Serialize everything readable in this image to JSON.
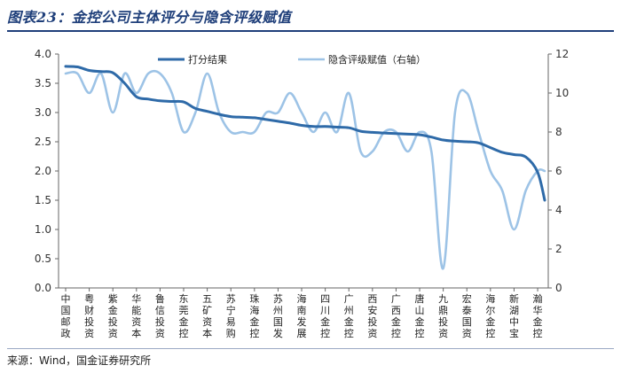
{
  "figure": {
    "title": "图表23：金控公司主体评分与隐含评级赋值",
    "source": "来源：Wind，国金证券研究所"
  },
  "chart_data": {
    "type": "line",
    "categories": [
      "中国邮政",
      "粤财投资",
      "紫金投资",
      "华能资本",
      "鲁信投资",
      "东莞金控",
      "五矿资本",
      "苏宁易购",
      "珠海金控",
      "苏州国发",
      "海南发展",
      "四川金控",
      "广州金控",
      "西安投资",
      "广西金控",
      "唐山金控",
      "九鼎投资",
      "宏泰国资",
      "海尔金控",
      "新湖中宝",
      "瀚华金控"
    ],
    "x": [
      0,
      0.5,
      1,
      1.5,
      2,
      2.5,
      3,
      3.5,
      4,
      4.5,
      5,
      5.5,
      6,
      6.5,
      7,
      7.5,
      8,
      8.5,
      9,
      9.5,
      10,
      10.5,
      11,
      11.5,
      12,
      12.5,
      13,
      13.5,
      14,
      14.5,
      15,
      15.5,
      16,
      16.5,
      17,
      17.5,
      18,
      18.5,
      19,
      19.5,
      20,
      20.3
    ],
    "series": [
      {
        "name": "打分结果",
        "axis": "left",
        "color": "#2e6aa8",
        "values": [
          3.79,
          3.78,
          3.72,
          3.7,
          3.68,
          3.5,
          3.27,
          3.23,
          3.2,
          3.19,
          3.18,
          3.07,
          3.02,
          2.97,
          2.93,
          2.92,
          2.91,
          2.88,
          2.85,
          2.82,
          2.78,
          2.76,
          2.76,
          2.75,
          2.74,
          2.68,
          2.66,
          2.65,
          2.64,
          2.63,
          2.62,
          2.58,
          2.53,
          2.51,
          2.5,
          2.48,
          2.4,
          2.32,
          2.28,
          2.24,
          1.98,
          1.5
        ]
      },
      {
        "name": "隐含评级赋值（右轴）",
        "axis": "right",
        "color": "#9dc3e6",
        "values": [
          11,
          11,
          10,
          11,
          9,
          11,
          10,
          11,
          11,
          10,
          8,
          9,
          11,
          9,
          8,
          8,
          8,
          9,
          9,
          10,
          9,
          8,
          9,
          8,
          10,
          7,
          7,
          8,
          8,
          7,
          8,
          7,
          1,
          9,
          10,
          8,
          6,
          5,
          3,
          5,
          6,
          6
        ]
      }
    ],
    "y_left": {
      "min": 0.0,
      "max": 4.0,
      "ticks": [
        "0.0",
        "0.5",
        "1.0",
        "1.5",
        "2.0",
        "2.5",
        "3.0",
        "3.5",
        "4.0"
      ]
    },
    "y_right": {
      "min": 0,
      "max": 12,
      "ticks": [
        "0",
        "2",
        "4",
        "6",
        "8",
        "10",
        "12"
      ]
    },
    "legend": {
      "placement": "top-center",
      "entries": [
        "打分结果",
        "隐含评级赋值（右轴）"
      ]
    },
    "grid": false
  }
}
